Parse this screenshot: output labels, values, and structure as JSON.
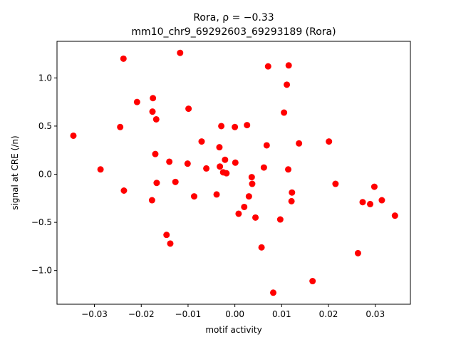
{
  "chart_data": {
    "type": "scatter",
    "title": "Rora, ρ = −0.33",
    "subtitle": "mm10_chr9_69292603_69293189 (Rora)",
    "xlabel": "motif activity",
    "ylabel": "signal at CRE (/n)",
    "xlim": [
      -0.038,
      0.0375
    ],
    "ylim": [
      -1.35,
      1.38
    ],
    "xticks": [
      -0.03,
      -0.02,
      -0.01,
      0.0,
      0.01,
      0.02,
      0.03
    ],
    "xtick_labels": [
      "−0.03",
      "−0.02",
      "−0.01",
      "0.00",
      "0.01",
      "0.02",
      "0.03"
    ],
    "yticks": [
      -1.0,
      -0.5,
      0.0,
      0.5,
      1.0
    ],
    "ytick_labels": [
      "−1.0",
      "−0.5",
      "0.0",
      "0.5",
      "1.0"
    ],
    "grid": false,
    "marker_color": "#ff0000",
    "points": [
      {
        "x": -0.0345,
        "y": 0.4
      },
      {
        "x": -0.0287,
        "y": 0.05
      },
      {
        "x": -0.0245,
        "y": 0.49
      },
      {
        "x": -0.0238,
        "y": 1.2
      },
      {
        "x": -0.0237,
        "y": -0.17
      },
      {
        "x": -0.0209,
        "y": 0.75
      },
      {
        "x": -0.0177,
        "y": -0.27
      },
      {
        "x": -0.0176,
        "y": 0.65
      },
      {
        "x": -0.0175,
        "y": 0.79
      },
      {
        "x": -0.017,
        "y": 0.21
      },
      {
        "x": -0.0168,
        "y": 0.57
      },
      {
        "x": -0.0167,
        "y": -0.09
      },
      {
        "x": -0.0146,
        "y": -0.63
      },
      {
        "x": -0.014,
        "y": 0.13
      },
      {
        "x": -0.0138,
        "y": -0.72
      },
      {
        "x": -0.0127,
        "y": -0.08
      },
      {
        "x": -0.0117,
        "y": 1.26
      },
      {
        "x": -0.0101,
        "y": 0.11
      },
      {
        "x": -0.0099,
        "y": 0.68
      },
      {
        "x": -0.0087,
        "y": -0.23
      },
      {
        "x": -0.0071,
        "y": 0.34
      },
      {
        "x": -0.0061,
        "y": 0.06
      },
      {
        "x": -0.0039,
        "y": -0.21
      },
      {
        "x": -0.0033,
        "y": 0.28
      },
      {
        "x": -0.0032,
        "y": 0.08
      },
      {
        "x": -0.0029,
        "y": 0.5
      },
      {
        "x": -0.0025,
        "y": 0.02
      },
      {
        "x": -0.0021,
        "y": 0.15
      },
      {
        "x": -0.0018,
        "y": 0.01
      },
      {
        "x": 0.0,
        "y": 0.49
      },
      {
        "x": 0.0001,
        "y": 0.12
      },
      {
        "x": 0.0008,
        "y": -0.41
      },
      {
        "x": 0.002,
        "y": -0.34
      },
      {
        "x": 0.0026,
        "y": 0.51
      },
      {
        "x": 0.003,
        "y": -0.23
      },
      {
        "x": 0.0036,
        "y": -0.03
      },
      {
        "x": 0.0037,
        "y": -0.1
      },
      {
        "x": 0.0044,
        "y": -0.45
      },
      {
        "x": 0.0057,
        "y": -0.76
      },
      {
        "x": 0.0062,
        "y": 0.07
      },
      {
        "x": 0.0068,
        "y": 0.3
      },
      {
        "x": 0.0071,
        "y": 1.12
      },
      {
        "x": 0.0082,
        "y": -1.23
      },
      {
        "x": 0.0097,
        "y": -0.47
      },
      {
        "x": 0.0105,
        "y": 0.64
      },
      {
        "x": 0.0111,
        "y": 0.93
      },
      {
        "x": 0.0114,
        "y": 0.05
      },
      {
        "x": 0.0115,
        "y": 1.13
      },
      {
        "x": 0.0121,
        "y": -0.28
      },
      {
        "x": 0.0122,
        "y": -0.19
      },
      {
        "x": 0.0137,
        "y": 0.32
      },
      {
        "x": 0.0166,
        "y": -1.11
      },
      {
        "x": 0.0201,
        "y": 0.34
      },
      {
        "x": 0.0215,
        "y": -0.1
      },
      {
        "x": 0.0263,
        "y": -0.82
      },
      {
        "x": 0.0273,
        "y": -0.29
      },
      {
        "x": 0.0289,
        "y": -0.31
      },
      {
        "x": 0.0298,
        "y": -0.13
      },
      {
        "x": 0.0314,
        "y": -0.27
      },
      {
        "x": 0.0342,
        "y": -0.43
      }
    ]
  }
}
